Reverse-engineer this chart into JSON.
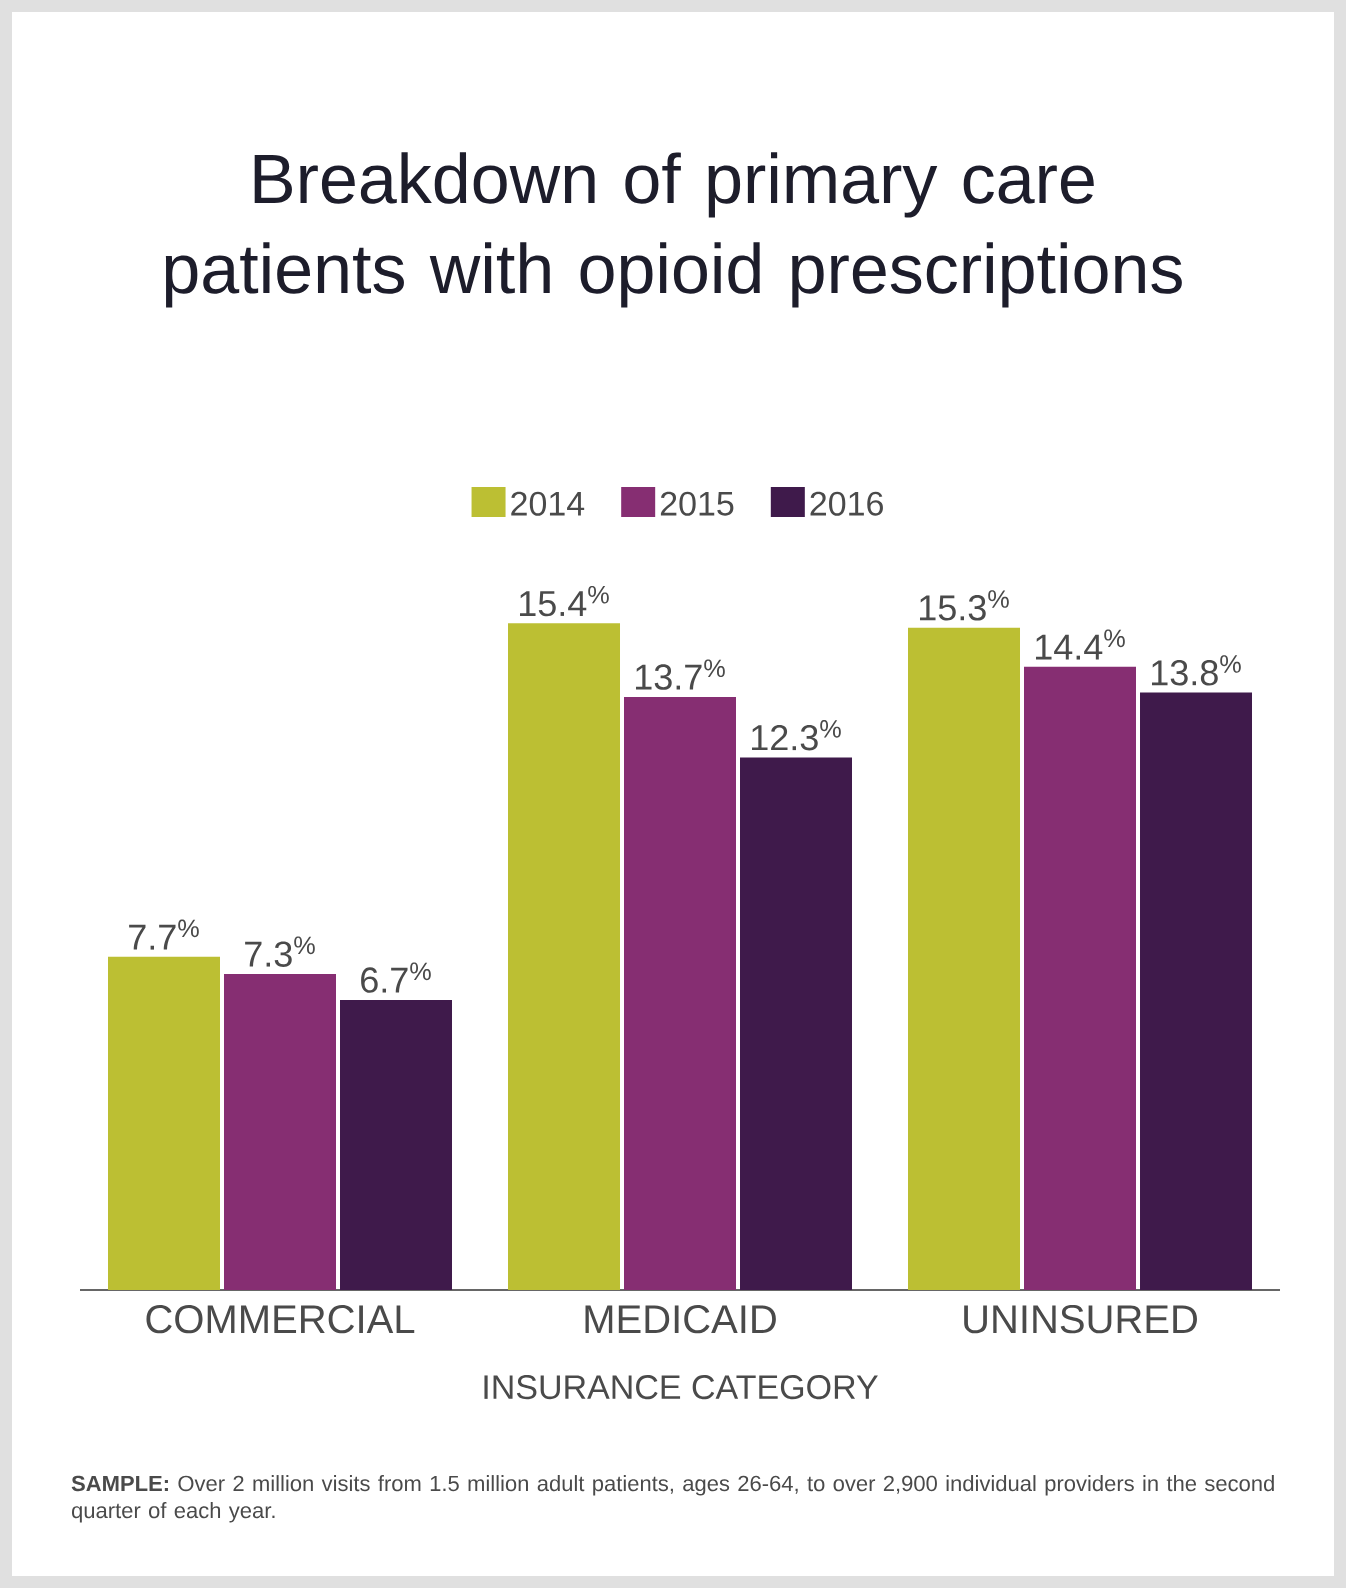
{
  "chart_data": {
    "type": "bar",
    "title": "Breakdown of primary care patients with opioid prescriptions",
    "categories": [
      "COMMERCIAL",
      "MEDICAID",
      "UNINSURED"
    ],
    "xlabel": "INSURANCE CATEGORY",
    "series": [
      {
        "name": "2014",
        "color": "#bcbf33",
        "values": [
          7.7,
          15.4,
          15.3
        ],
        "value_labels": [
          "7.7$^{%}$",
          "15.4$^{%}$",
          "15.3$^{%}$"
        ]
      },
      {
        "name": "2015",
        "color": "#862e72",
        "values": [
          7.3,
          13.7,
          14.4
        ],
        "value_labels": [
          "7.3$^{%}$",
          "13.7$^{%}$",
          "14.4$^{%}$"
        ]
      },
      {
        "name": "2016",
        "color": "#3f1a4b",
        "values": [
          6.7,
          12.3,
          13.8
        ],
        "value_labels": [
          "6.7$^{%}$",
          "12.3$^{%}$",
          "13.8$^{%}$"
        ]
      }
    ],
    "legend": "top",
    "annotations": [
      "**SAMPLE:** Over 2 million visits from 1.5 million adult patients, ages 26-64, to over 2,900 individual providers in the second quarter of each year."
    ]
  }
}
